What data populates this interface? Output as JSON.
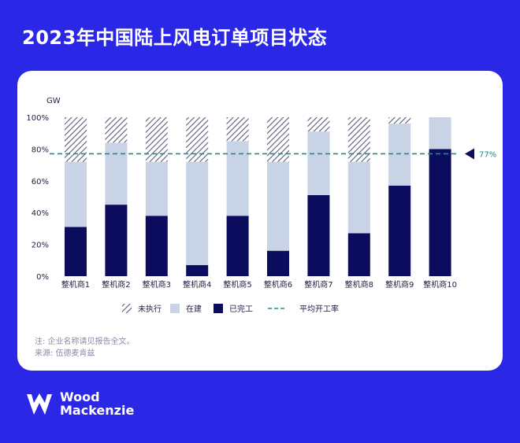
{
  "page_title": "2023年中国陆上风电订单项目状态",
  "notes": {
    "line1": "注: 企业名称请见报告全文。",
    "line2": "来源: 伍德麦肯兹"
  },
  "logo": {
    "line1": "Wood",
    "line2": "Mackenzie"
  },
  "colors": {
    "background": "#2b27e6",
    "completed": "#0c0c5e",
    "in_progress": "#c8d3e6",
    "not_executed_stripe": "#5a5a78",
    "avg_line": "#1f8a8a"
  },
  "chart_data": {
    "type": "bar",
    "stacked": true,
    "unit_label": "GW",
    "categories": [
      "整机商1",
      "整机商2",
      "整机商3",
      "整机商4",
      "整机商5",
      "整机商6",
      "整机商7",
      "整机商8",
      "整机商9",
      "整机商10"
    ],
    "series": [
      {
        "name": "已完工",
        "values": [
          31,
          45,
          38,
          7,
          38,
          16,
          51,
          27,
          57,
          80
        ]
      },
      {
        "name": "在建",
        "values": [
          41,
          39,
          34,
          65,
          47,
          56,
          40,
          45,
          39,
          20
        ]
      },
      {
        "name": "未执行",
        "values": [
          28,
          16,
          28,
          28,
          15,
          28,
          9,
          28,
          4,
          0
        ]
      }
    ],
    "ylim": [
      0,
      100
    ],
    "yticks": [
      "0%",
      "20%",
      "40%",
      "60%",
      "80%",
      "100%"
    ],
    "reference_line": {
      "name": "平均开工率",
      "value": 77,
      "label": "77%"
    },
    "legend": {
      "order": [
        "未执行",
        "在建",
        "已完工",
        "平均开工率"
      ],
      "position": "bottom"
    },
    "grid": false
  }
}
